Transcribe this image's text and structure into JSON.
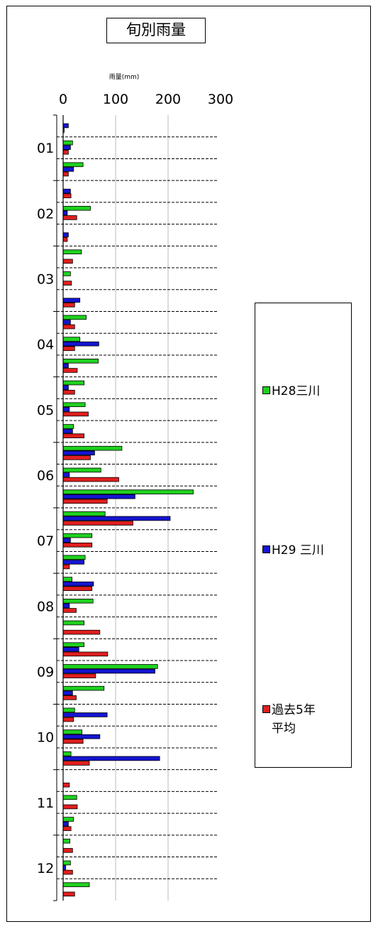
{
  "title": "旬別雨量",
  "xlabel": "雨量(mm)",
  "legend": [
    {
      "name": "H28三川",
      "color": "#1fd11f"
    },
    {
      "name": "H29 三川",
      "color": "#1414d2"
    },
    {
      "name": "過去5年\n平均",
      "color": "#e01e1e"
    }
  ],
  "chart_data": {
    "type": "bar",
    "orientation": "horizontal",
    "title": "旬別雨量",
    "xlabel": "雨量(mm)",
    "xlim": [
      0,
      300
    ],
    "xticks": [
      0,
      100,
      200,
      300
    ],
    "grid": true,
    "legend_position": "right",
    "categories": [
      "01",
      "",
      "",
      "02",
      "",
      "",
      "03",
      "",
      "",
      "04",
      "",
      "",
      "05",
      "",
      "",
      "06",
      "",
      "",
      "07",
      "",
      "",
      "08",
      "",
      "",
      "09",
      "",
      "",
      "10",
      "",
      "",
      "11",
      "",
      "",
      "12",
      "",
      ""
    ],
    "month_labels": [
      "01",
      "02",
      "03",
      "04",
      "05",
      "06",
      "07",
      "08",
      "09",
      "10",
      "11",
      "12"
    ],
    "series": [
      {
        "name": "H28三川",
        "color": "#1fd11f",
        "values": [
          0,
          18,
          38,
          0,
          52,
          0,
          35,
          14,
          0,
          44,
          32,
          67,
          40,
          42,
          20,
          112,
          72,
          248,
          80,
          55,
          42,
          17,
          57,
          40,
          40,
          180,
          78,
          22,
          36,
          15,
          0,
          26,
          20,
          13,
          14,
          50
        ]
      },
      {
        "name": "H29 三川",
        "color": "#1414d2",
        "values": [
          10,
          14,
          20,
          14,
          8,
          10,
          0,
          0,
          32,
          14,
          68,
          10,
          10,
          12,
          18,
          60,
          12,
          137,
          204,
          14,
          40,
          58,
          12,
          0,
          30,
          175,
          18,
          84,
          70,
          184,
          0,
          0,
          10,
          0,
          5,
          0
        ]
      },
      {
        "name": "過去5年平均",
        "color": "#e01e1e",
        "values": [
          2,
          10,
          10,
          15,
          26,
          8,
          18,
          16,
          22,
          22,
          22,
          27,
          22,
          48,
          40,
          52,
          106,
          84,
          133,
          55,
          12,
          55,
          25,
          70,
          85,
          62,
          25,
          20,
          38,
          50,
          12,
          27,
          15,
          18,
          18,
          22
        ]
      }
    ]
  }
}
